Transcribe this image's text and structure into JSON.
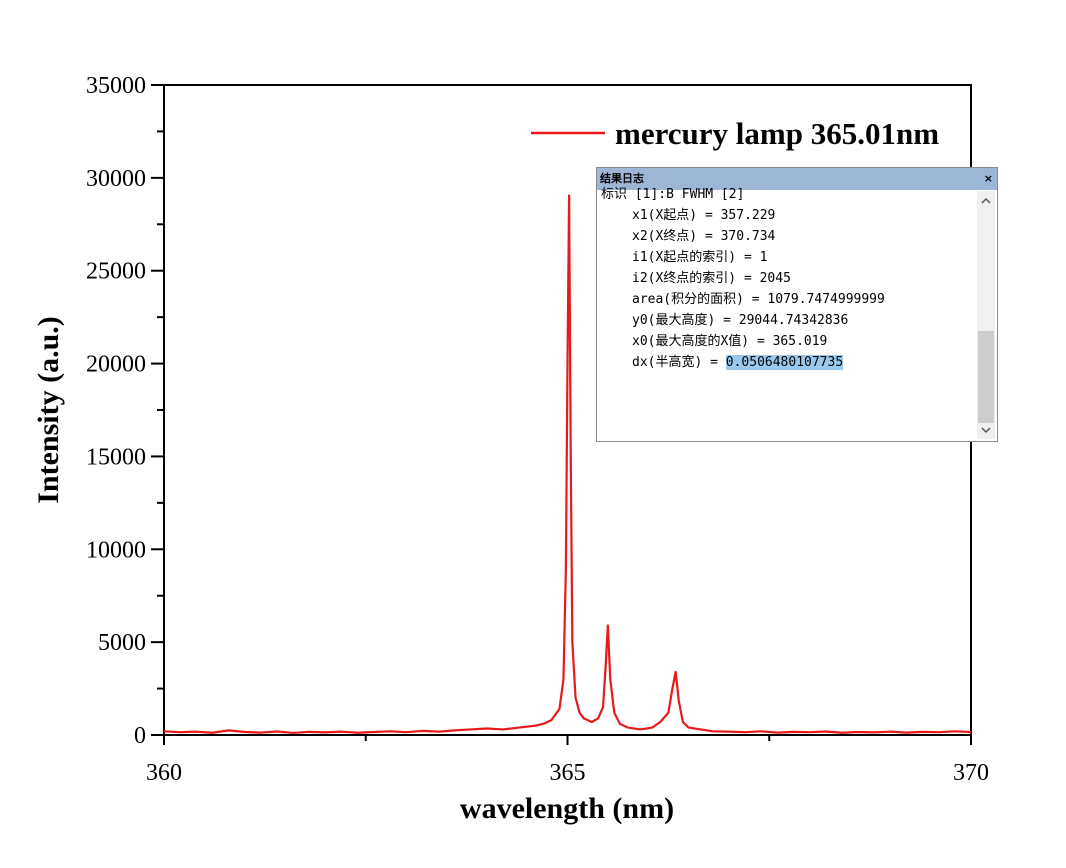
{
  "chart_data": {
    "type": "line",
    "xlabel": "wavelength (nm)",
    "ylabel": "Intensity (a.u.)",
    "x": [
      360,
      360.2,
      360.4,
      360.6,
      360.8,
      361,
      361.2,
      361.4,
      361.6,
      361.8,
      362,
      362.2,
      362.4,
      362.6,
      362.8,
      363,
      363.2,
      363.4,
      363.6,
      363.8,
      364,
      364.2,
      364.4,
      364.6,
      364.7,
      364.8,
      364.9,
      364.95,
      364.98,
      365.0,
      365.02,
      365.04,
      365.06,
      365.1,
      365.15,
      365.2,
      365.3,
      365.38,
      365.44,
      365.47,
      365.5,
      365.53,
      365.58,
      365.65,
      365.75,
      365.9,
      366.05,
      366.15,
      366.25,
      366.3,
      366.34,
      366.38,
      366.43,
      366.5,
      366.65,
      366.8,
      367,
      367.2,
      367.4,
      367.6,
      367.8,
      368,
      368.2,
      368.4,
      368.6,
      368.8,
      369,
      369.2,
      369.4,
      369.6,
      369.8,
      370
    ],
    "series": [
      {
        "name": "mercury lamp 365.01nm",
        "color": "#e8191b",
        "values": [
          200,
          150,
          180,
          120,
          250,
          160,
          130,
          190,
          110,
          170,
          140,
          180,
          120,
          160,
          200,
          150,
          220,
          180,
          250,
          300,
          350,
          300,
          400,
          500,
          600,
          800,
          1400,
          3000,
          9000,
          20000,
          29044,
          15000,
          5000,
          2000,
          1200,
          900,
          700,
          900,
          1500,
          3500,
          5900,
          3000,
          1200,
          600,
          400,
          300,
          400,
          700,
          1200,
          2500,
          3400,
          1800,
          700,
          400,
          300,
          200,
          180,
          150,
          200,
          130,
          170,
          150,
          190,
          120,
          160,
          140,
          180,
          130,
          170,
          150,
          200,
          160
        ]
      }
    ],
    "xlim": [
      360,
      370
    ],
    "xticks": [
      360,
      365,
      370
    ],
    "xminorticks": [
      362.5,
      367.5
    ],
    "ylim": [
      0,
      35000
    ],
    "yticks": [
      0,
      5000,
      10000,
      15000,
      20000,
      25000,
      30000,
      35000
    ],
    "yminorticks": [
      2500,
      7500,
      12500,
      17500,
      22500,
      27500,
      32500
    ],
    "legend": "upper right"
  },
  "log_window": {
    "title": "结果日志",
    "close": "×",
    "header": "标识 [1]:B FWHM [2]",
    "entries": [
      {
        "key": "x1(X起点) =",
        "value": "357.229"
      },
      {
        "key": "x2(X终点) =",
        "value": "370.734"
      },
      {
        "key": "i1(X起点的索引) =",
        "value": "1"
      },
      {
        "key": "i2(X终点的索引) =",
        "value": "2045"
      },
      {
        "key": "area(积分的面积) =",
        "value": "1079.7474999999"
      },
      {
        "key": "y0(最大高度) =",
        "value": "29044.74342836"
      },
      {
        "key": "x0(最大高度的X值) =",
        "value": "365.019"
      },
      {
        "key": "dx(半高宽) =",
        "value": "0.0506480107735",
        "selected": true
      }
    ]
  }
}
